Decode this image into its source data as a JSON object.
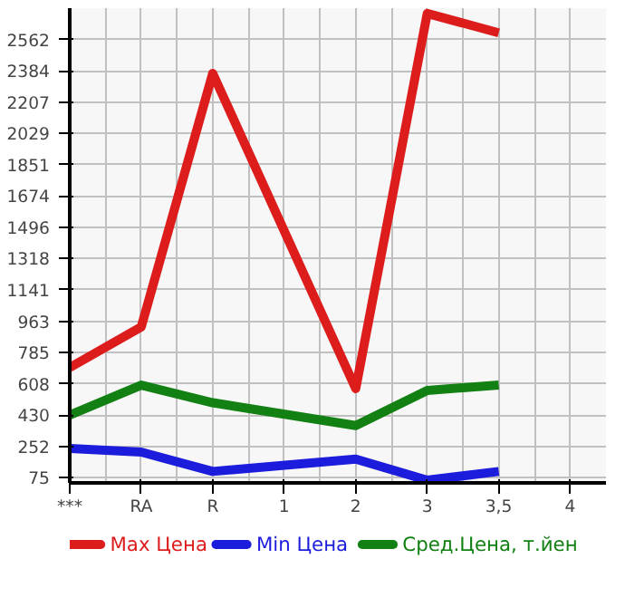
{
  "chart_data": {
    "type": "line",
    "categories": [
      "***",
      "RA",
      "R",
      "1",
      "2",
      "3",
      "3,5",
      "4"
    ],
    "series": [
      {
        "name": "Max Цена",
        "color": "#dd1c1c",
        "values": [
          700,
          930,
          2370,
          null,
          580,
          2710,
          2600,
          null
        ]
      },
      {
        "name": "Min Цена",
        "color": "#1c1cdd",
        "values": [
          240,
          220,
          110,
          null,
          180,
          60,
          110,
          null
        ]
      },
      {
        "name": "Сред.Цена, т.йен",
        "color": "#128012",
        "values": [
          430,
          600,
          500,
          null,
          370,
          570,
          600,
          null
        ]
      }
    ],
    "ylim": [
      45,
      2740
    ],
    "yticks": [
      75,
      252,
      430,
      608,
      785,
      963,
      1141,
      1318,
      1496,
      1674,
      1851,
      2029,
      2207,
      2384,
      2562
    ],
    "grid": true,
    "legend": "bottom",
    "marker": "none",
    "line_style": "solid"
  }
}
